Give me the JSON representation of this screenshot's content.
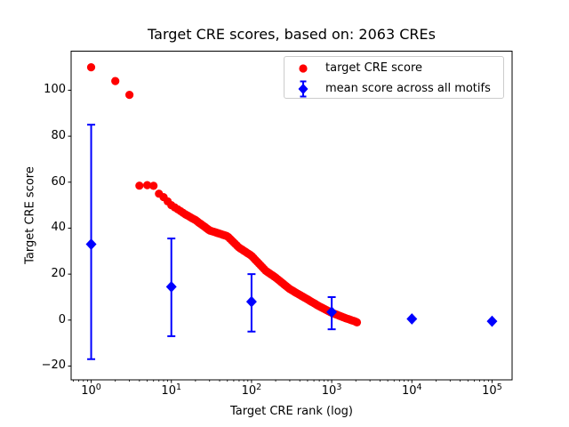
{
  "figure": {
    "background": "#ffffff"
  },
  "chart_data": {
    "type": "scatter",
    "title": "Target CRE scores, based on: 2063 CREs",
    "xlabel": "Target CRE rank (log)",
    "ylabel": "Target CRE score",
    "x_scale": "log",
    "xlim_log10": [
      -0.25,
      5.25
    ],
    "ylim": [
      -26,
      117
    ],
    "x_tick_exponents": [
      0,
      1,
      2,
      3,
      4,
      5
    ],
    "y_ticks": [
      -20,
      0,
      20,
      40,
      60,
      80,
      100
    ],
    "grid": false,
    "legend_position": "upper right",
    "legend_border_color": "#cccccc",
    "n_cres": 2063,
    "series": [
      {
        "name": "target CRE score",
        "marker": "circle",
        "color": "#ff0000",
        "n_points": 2063,
        "points": [
          [
            1,
            110
          ],
          [
            2,
            104
          ],
          [
            3,
            98
          ],
          [
            4,
            58.5
          ],
          [
            5,
            58.7
          ],
          [
            6,
            58.4
          ],
          [
            7,
            55
          ],
          [
            8,
            53.5
          ],
          [
            10,
            50
          ],
          [
            15,
            46
          ],
          [
            20,
            43.5
          ],
          [
            30,
            39
          ],
          [
            50,
            36.5
          ],
          [
            70,
            31.5
          ],
          [
            100,
            28
          ],
          [
            150,
            21.5
          ],
          [
            200,
            18.5
          ],
          [
            300,
            13.5
          ],
          [
            500,
            9
          ],
          [
            700,
            6
          ],
          [
            1000,
            3.2
          ],
          [
            1500,
            0.8
          ],
          [
            2000,
            -0.7
          ],
          [
            2063,
            -1
          ]
        ]
      },
      {
        "name": "mean score across all motifs",
        "marker": "diamond",
        "color": "#0000ff",
        "points": [
          {
            "rank": 1,
            "mean": 33,
            "low": -17,
            "high": 85
          },
          {
            "rank": 10,
            "mean": 14.5,
            "low": -7,
            "high": 35.5
          },
          {
            "rank": 100,
            "mean": 8,
            "low": -5,
            "high": 20
          },
          {
            "rank": 1000,
            "mean": 3.5,
            "low": -4,
            "high": 10
          },
          {
            "rank": 10000,
            "mean": 0.5,
            "low": 0.5,
            "high": 0.5
          },
          {
            "rank": 100000,
            "mean": -0.5,
            "low": -0.5,
            "high": -0.5
          }
        ]
      }
    ]
  }
}
